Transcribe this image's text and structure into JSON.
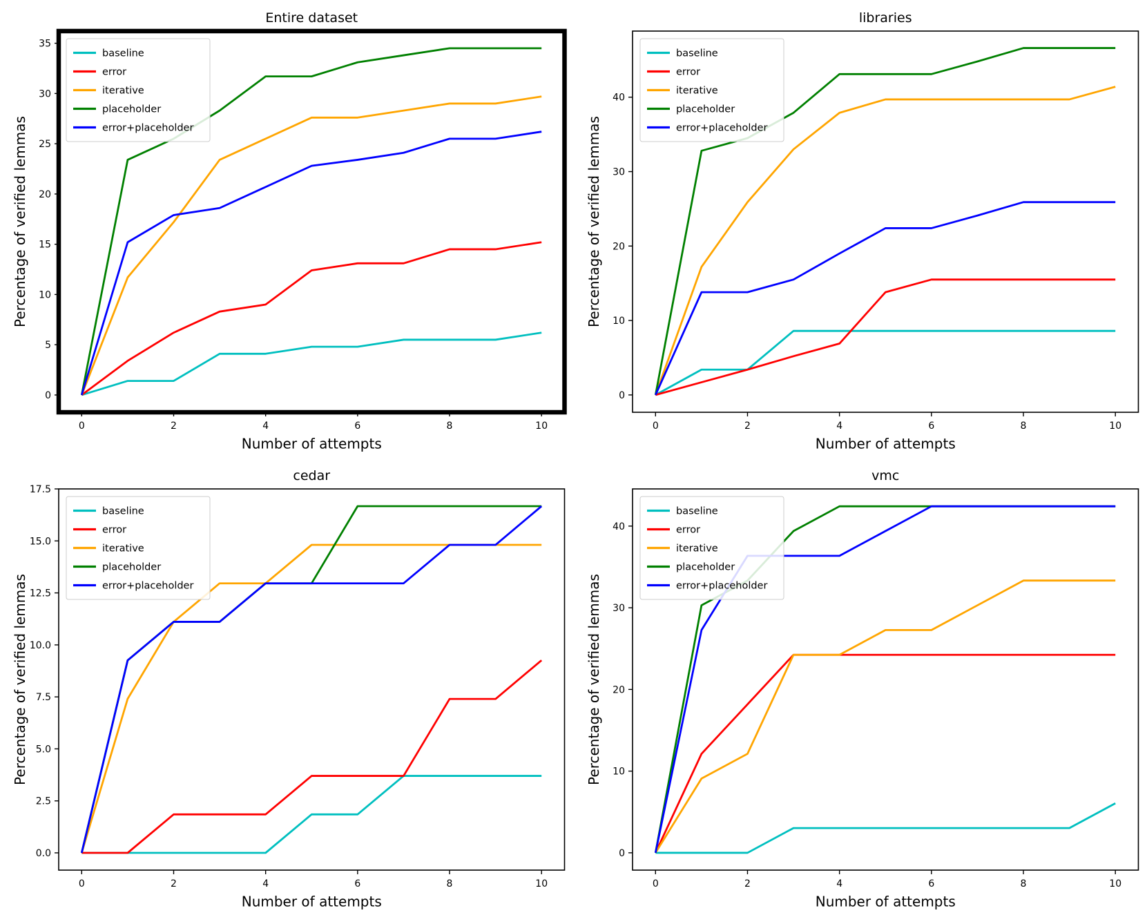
{
  "figure": {
    "background": "#ffffff",
    "text_color": "#000000",
    "legend_border_color": "#cccccc",
    "legend_background": "#ffffff"
  },
  "axis": {
    "xlabel": "Number of attempts",
    "ylabel": "Percentage of verified lemmas"
  },
  "legend": {
    "entries": [
      "baseline",
      "error",
      "iterative",
      "placeholder",
      "error+placeholder"
    ],
    "position": "upper-left"
  },
  "colors": {
    "baseline": "#00bfbf",
    "error": "#ff0000",
    "iterative": "#ffa500",
    "placeholder": "#008000",
    "error+placeholder": "#0000ff"
  },
  "chart_data": [
    {
      "type": "line",
      "title": "Entire dataset",
      "highlighted": true,
      "xlabel": "Number of attempts",
      "ylabel": "Percentage of verified lemmas",
      "x": [
        0,
        1,
        2,
        3,
        4,
        5,
        6,
        7,
        8,
        9,
        10
      ],
      "xlim": [
        -0.5,
        10.5
      ],
      "ylim": [
        -1.72,
        36.21
      ],
      "xticks": [
        "0",
        "2",
        "4",
        "6",
        "8",
        "10"
      ],
      "xtick_values": [
        0,
        2,
        4,
        6,
        8,
        10
      ],
      "yticks": [
        "0",
        "5",
        "10",
        "15",
        "20",
        "25",
        "30",
        "35"
      ],
      "ytick_values": [
        0,
        5,
        10,
        15,
        20,
        25,
        30,
        35
      ],
      "grid": false,
      "legend_position": "upper-left",
      "series": [
        {
          "name": "baseline",
          "values": [
            0,
            1.4,
            1.4,
            4.1,
            4.1,
            4.8,
            4.8,
            5.5,
            5.5,
            5.5,
            6.2
          ]
        },
        {
          "name": "error",
          "values": [
            0,
            3.4,
            6.2,
            8.3,
            9.0,
            12.4,
            13.1,
            13.1,
            14.5,
            14.5,
            15.2
          ]
        },
        {
          "name": "iterative",
          "values": [
            0,
            11.7,
            17.2,
            23.4,
            25.5,
            27.6,
            27.6,
            28.3,
            29.0,
            29.0,
            29.7
          ]
        },
        {
          "name": "placeholder",
          "values": [
            0,
            23.4,
            25.5,
            28.3,
            31.7,
            31.7,
            33.1,
            33.8,
            34.5,
            34.5,
            34.5
          ]
        },
        {
          "name": "error+placeholder",
          "values": [
            0,
            15.2,
            17.9,
            18.6,
            20.7,
            22.8,
            23.4,
            24.1,
            25.5,
            25.5,
            26.2
          ]
        }
      ]
    },
    {
      "type": "line",
      "title": "libraries",
      "highlighted": false,
      "xlabel": "Number of attempts",
      "ylabel": "Percentage of verified lemmas",
      "x": [
        0,
        1,
        2,
        3,
        4,
        5,
        6,
        7,
        8,
        9,
        10
      ],
      "xlim": [
        -0.5,
        10.5
      ],
      "ylim": [
        -2.33,
        48.88
      ],
      "xticks": [
        "0",
        "2",
        "4",
        "6",
        "8",
        "10"
      ],
      "xtick_values": [
        0,
        2,
        4,
        6,
        8,
        10
      ],
      "yticks": [
        "0",
        "10",
        "20",
        "30",
        "40"
      ],
      "ytick_values": [
        0,
        10,
        20,
        30,
        40
      ],
      "grid": false,
      "legend_position": "upper-left",
      "series": [
        {
          "name": "baseline",
          "values": [
            0,
            3.4,
            3.4,
            8.6,
            8.6,
            8.6,
            8.6,
            8.6,
            8.6,
            8.6,
            8.6
          ]
        },
        {
          "name": "error",
          "values": [
            0,
            1.7,
            3.4,
            5.2,
            6.9,
            13.8,
            15.5,
            15.5,
            15.5,
            15.5,
            15.5
          ]
        },
        {
          "name": "iterative",
          "values": [
            0,
            17.2,
            25.9,
            33.0,
            37.9,
            39.7,
            39.7,
            39.7,
            39.7,
            39.7,
            41.4
          ]
        },
        {
          "name": "placeholder",
          "values": [
            0,
            32.8,
            34.5,
            37.9,
            43.1,
            43.1,
            43.1,
            44.8,
            46.6,
            46.6,
            46.6
          ]
        },
        {
          "name": "error+placeholder",
          "values": [
            0,
            13.8,
            13.8,
            15.5,
            19.0,
            22.4,
            22.4,
            24.1,
            25.9,
            25.9,
            25.9
          ]
        }
      ]
    },
    {
      "type": "line",
      "title": "cedar",
      "highlighted": false,
      "xlabel": "Number of attempts",
      "ylabel": "Percentage of verified lemmas",
      "x": [
        0,
        1,
        2,
        3,
        4,
        5,
        6,
        7,
        8,
        9,
        10
      ],
      "xlim": [
        -0.5,
        10.5
      ],
      "ylim": [
        -0.83,
        17.5
      ],
      "xticks": [
        "0",
        "2",
        "4",
        "6",
        "8",
        "10"
      ],
      "xtick_values": [
        0,
        2,
        4,
        6,
        8,
        10
      ],
      "yticks": [
        "0.0",
        "2.5",
        "5.0",
        "7.5",
        "10.0",
        "12.5",
        "15.0",
        "17.5"
      ],
      "ytick_values": [
        0,
        2.5,
        5,
        7.5,
        10,
        12.5,
        15,
        17.5
      ],
      "grid": false,
      "legend_position": "upper-left",
      "series": [
        {
          "name": "baseline",
          "values": [
            0,
            0,
            0,
            0,
            0,
            1.85,
            1.85,
            3.7,
            3.7,
            3.7,
            3.7
          ]
        },
        {
          "name": "error",
          "values": [
            0,
            0,
            1.85,
            1.85,
            1.85,
            3.7,
            3.7,
            3.7,
            7.4,
            7.4,
            9.26
          ]
        },
        {
          "name": "iterative",
          "values": [
            0,
            7.41,
            11.11,
            12.96,
            12.96,
            14.81,
            14.81,
            14.81,
            14.81,
            14.81,
            14.81
          ]
        },
        {
          "name": "placeholder",
          "values": [
            0,
            9.26,
            11.11,
            11.11,
            12.96,
            12.96,
            16.67,
            16.67,
            16.67,
            16.67,
            16.67
          ]
        },
        {
          "name": "error+placeholder",
          "values": [
            0,
            9.26,
            11.11,
            11.11,
            12.96,
            12.96,
            12.96,
            12.96,
            14.81,
            14.81,
            16.67
          ]
        }
      ]
    },
    {
      "type": "line",
      "title": "vmc",
      "highlighted": false,
      "xlabel": "Number of attempts",
      "ylabel": "Percentage of verified lemmas",
      "x": [
        0,
        1,
        2,
        3,
        4,
        5,
        6,
        7,
        8,
        9,
        10
      ],
      "xlim": [
        -0.5,
        10.5
      ],
      "ylim": [
        -2.12,
        44.55
      ],
      "xticks": [
        "0",
        "2",
        "4",
        "6",
        "8",
        "10"
      ],
      "xtick_values": [
        0,
        2,
        4,
        6,
        8,
        10
      ],
      "yticks": [
        "0",
        "10",
        "20",
        "30",
        "40"
      ],
      "ytick_values": [
        0,
        10,
        20,
        30,
        40
      ],
      "grid": false,
      "legend_position": "upper-left",
      "series": [
        {
          "name": "baseline",
          "values": [
            0,
            0,
            0,
            3.03,
            3.03,
            3.03,
            3.03,
            3.03,
            3.03,
            3.03,
            6.06
          ]
        },
        {
          "name": "error",
          "values": [
            0,
            12.12,
            18.18,
            24.24,
            24.24,
            24.24,
            24.24,
            24.24,
            24.24,
            24.24,
            24.24
          ]
        },
        {
          "name": "iterative",
          "values": [
            0,
            9.09,
            12.12,
            24.24,
            24.24,
            27.27,
            27.27,
            30.3,
            33.33,
            33.33,
            33.33
          ]
        },
        {
          "name": "placeholder",
          "values": [
            0,
            30.3,
            33.33,
            39.39,
            42.42,
            42.42,
            42.42,
            42.42,
            42.42,
            42.42,
            42.42
          ]
        },
        {
          "name": "error+placeholder",
          "values": [
            0,
            27.27,
            36.36,
            36.36,
            36.36,
            39.39,
            42.42,
            42.42,
            42.42,
            42.42,
            42.42
          ]
        }
      ]
    }
  ]
}
